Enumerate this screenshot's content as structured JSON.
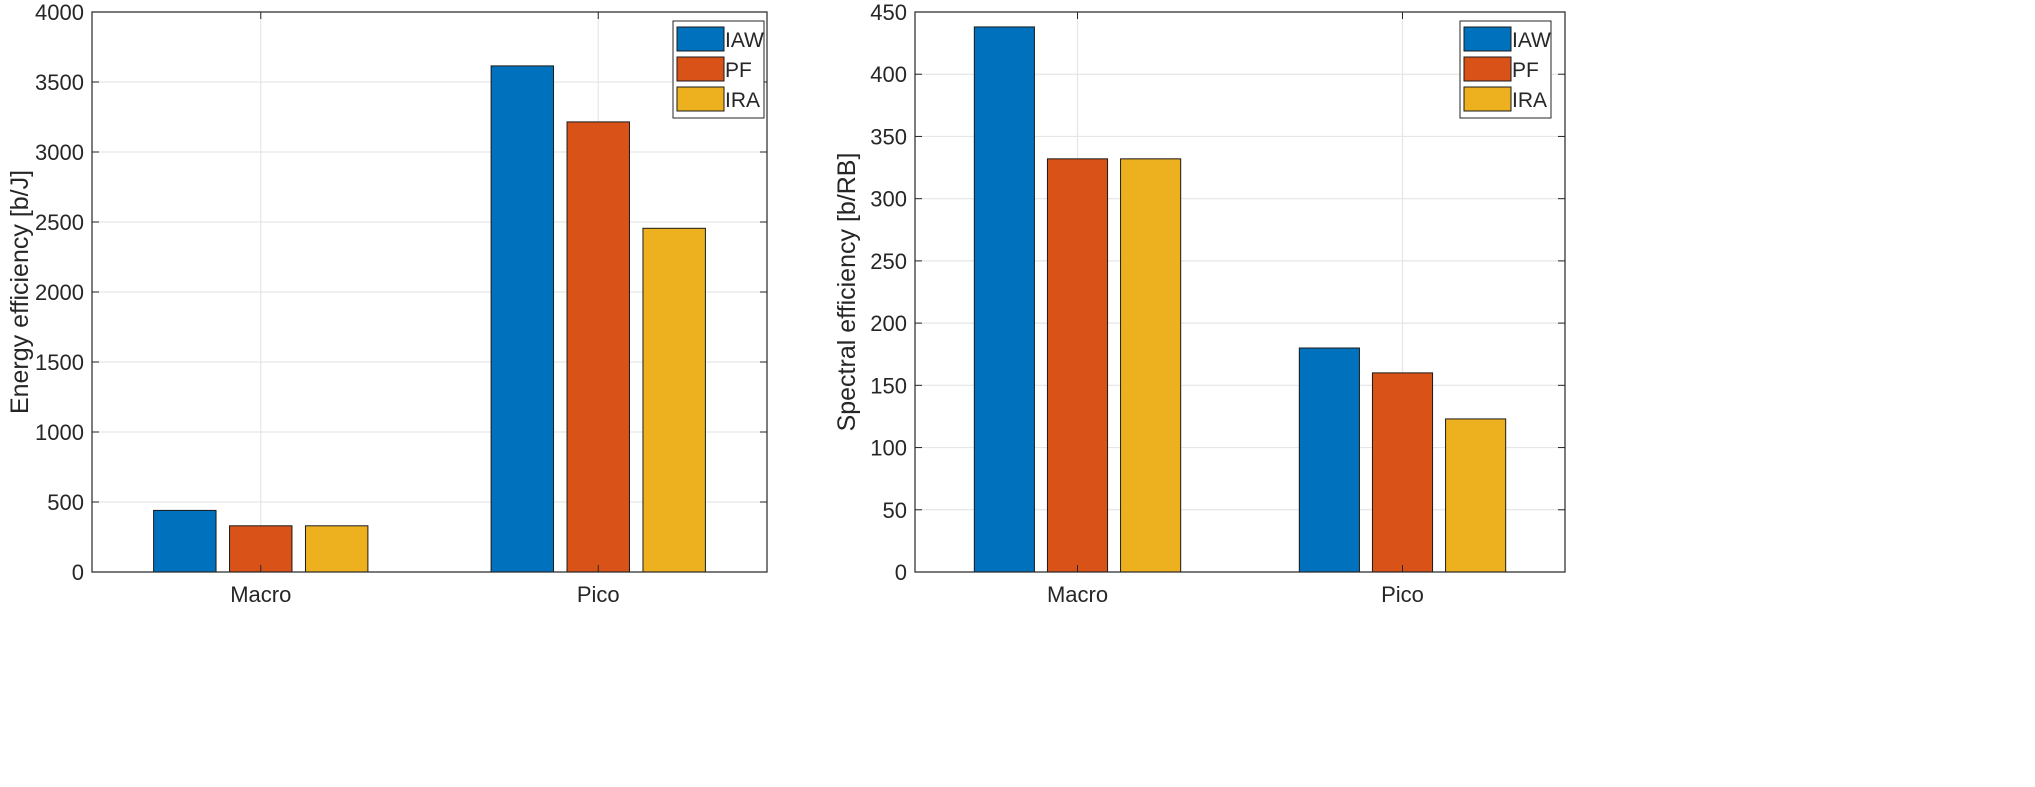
{
  "chart_data": [
    {
      "type": "bar",
      "title": "",
      "xlabel": "",
      "ylabel": "Energy efficiency [b/J]",
      "categories": [
        "Macro",
        "Pico"
      ],
      "ylim": [
        0,
        4000
      ],
      "yticks": [
        0,
        500,
        1000,
        1500,
        2000,
        2500,
        3000,
        3500,
        4000
      ],
      "grid": true,
      "legend": "top-right",
      "series": [
        {
          "name": "IAW",
          "color": "#0072BD",
          "values": [
            440,
            3615
          ]
        },
        {
          "name": "PF",
          "color": "#D95319",
          "values": [
            330,
            3215
          ]
        },
        {
          "name": "IRA",
          "color": "#EDB120",
          "values": [
            330,
            2455
          ]
        }
      ]
    },
    {
      "type": "bar",
      "title": "",
      "xlabel": "",
      "ylabel": "Spectral efficiency [b/RB]",
      "categories": [
        "Macro",
        "Pico"
      ],
      "ylim": [
        0,
        450
      ],
      "yticks": [
        0,
        50,
        100,
        150,
        200,
        250,
        300,
        350,
        400,
        450
      ],
      "grid": true,
      "legend": "top-right",
      "series": [
        {
          "name": "IAW",
          "color": "#0072BD",
          "values": [
            438,
            180
          ]
        },
        {
          "name": "PF",
          "color": "#D95319",
          "values": [
            332,
            160
          ]
        },
        {
          "name": "IRA",
          "color": "#EDB120",
          "values": [
            332,
            123
          ]
        }
      ]
    }
  ]
}
